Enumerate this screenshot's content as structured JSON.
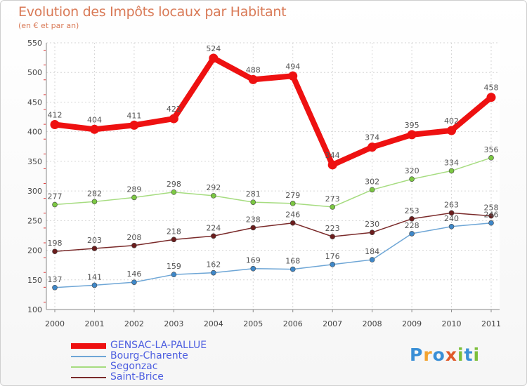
{
  "title": "Evolution des Impôts locaux par Habitant",
  "subtitle": "(en € et par an)",
  "logo": {
    "text": "Proxiti",
    "letters": [
      "P",
      "r",
      "o",
      "x",
      "i",
      "t",
      "i"
    ],
    "colors": [
      "#3a8fd6",
      "#f3a32f",
      "#3a8fd6",
      "#e0592a",
      "#7cbf3a",
      "#3a8fd6",
      "#7cbf3a"
    ]
  },
  "chart_data": {
    "type": "line",
    "title": "Evolution des Impôts locaux par Habitant",
    "subtitle": "(en € et par an)",
    "xlabel": "",
    "ylabel": "",
    "ylim": [
      100,
      550
    ],
    "yticks": [
      100,
      150,
      200,
      250,
      300,
      350,
      400,
      450,
      500,
      550
    ],
    "categories": [
      "2000",
      "2001",
      "2002",
      "2003",
      "2004",
      "2005",
      "2006",
      "2007",
      "2008",
      "2009",
      "2010",
      "2011"
    ],
    "legend_position": "bottom-left",
    "series": [
      {
        "name": "GENSAC-LA-PALLUE",
        "color": "#ee1111",
        "values": [
          412,
          404,
          411,
          422,
          524,
          488,
          494,
          344,
          374,
          395,
          402,
          458
        ]
      },
      {
        "name": "Bourg-Charente",
        "color": "#6ea6d6",
        "values": [
          137,
          141,
          146,
          159,
          162,
          169,
          168,
          176,
          184,
          228,
          240,
          246
        ]
      },
      {
        "name": "Segonzac",
        "color": "#9bd96a",
        "values": [
          277,
          282,
          289,
          298,
          292,
          281,
          279,
          273,
          302,
          320,
          334,
          356
        ]
      },
      {
        "name": "Saint-Brice",
        "color": "#7a2a2a",
        "values": [
          198,
          203,
          208,
          218,
          224,
          238,
          246,
          223,
          230,
          253,
          263,
          258
        ]
      }
    ]
  }
}
